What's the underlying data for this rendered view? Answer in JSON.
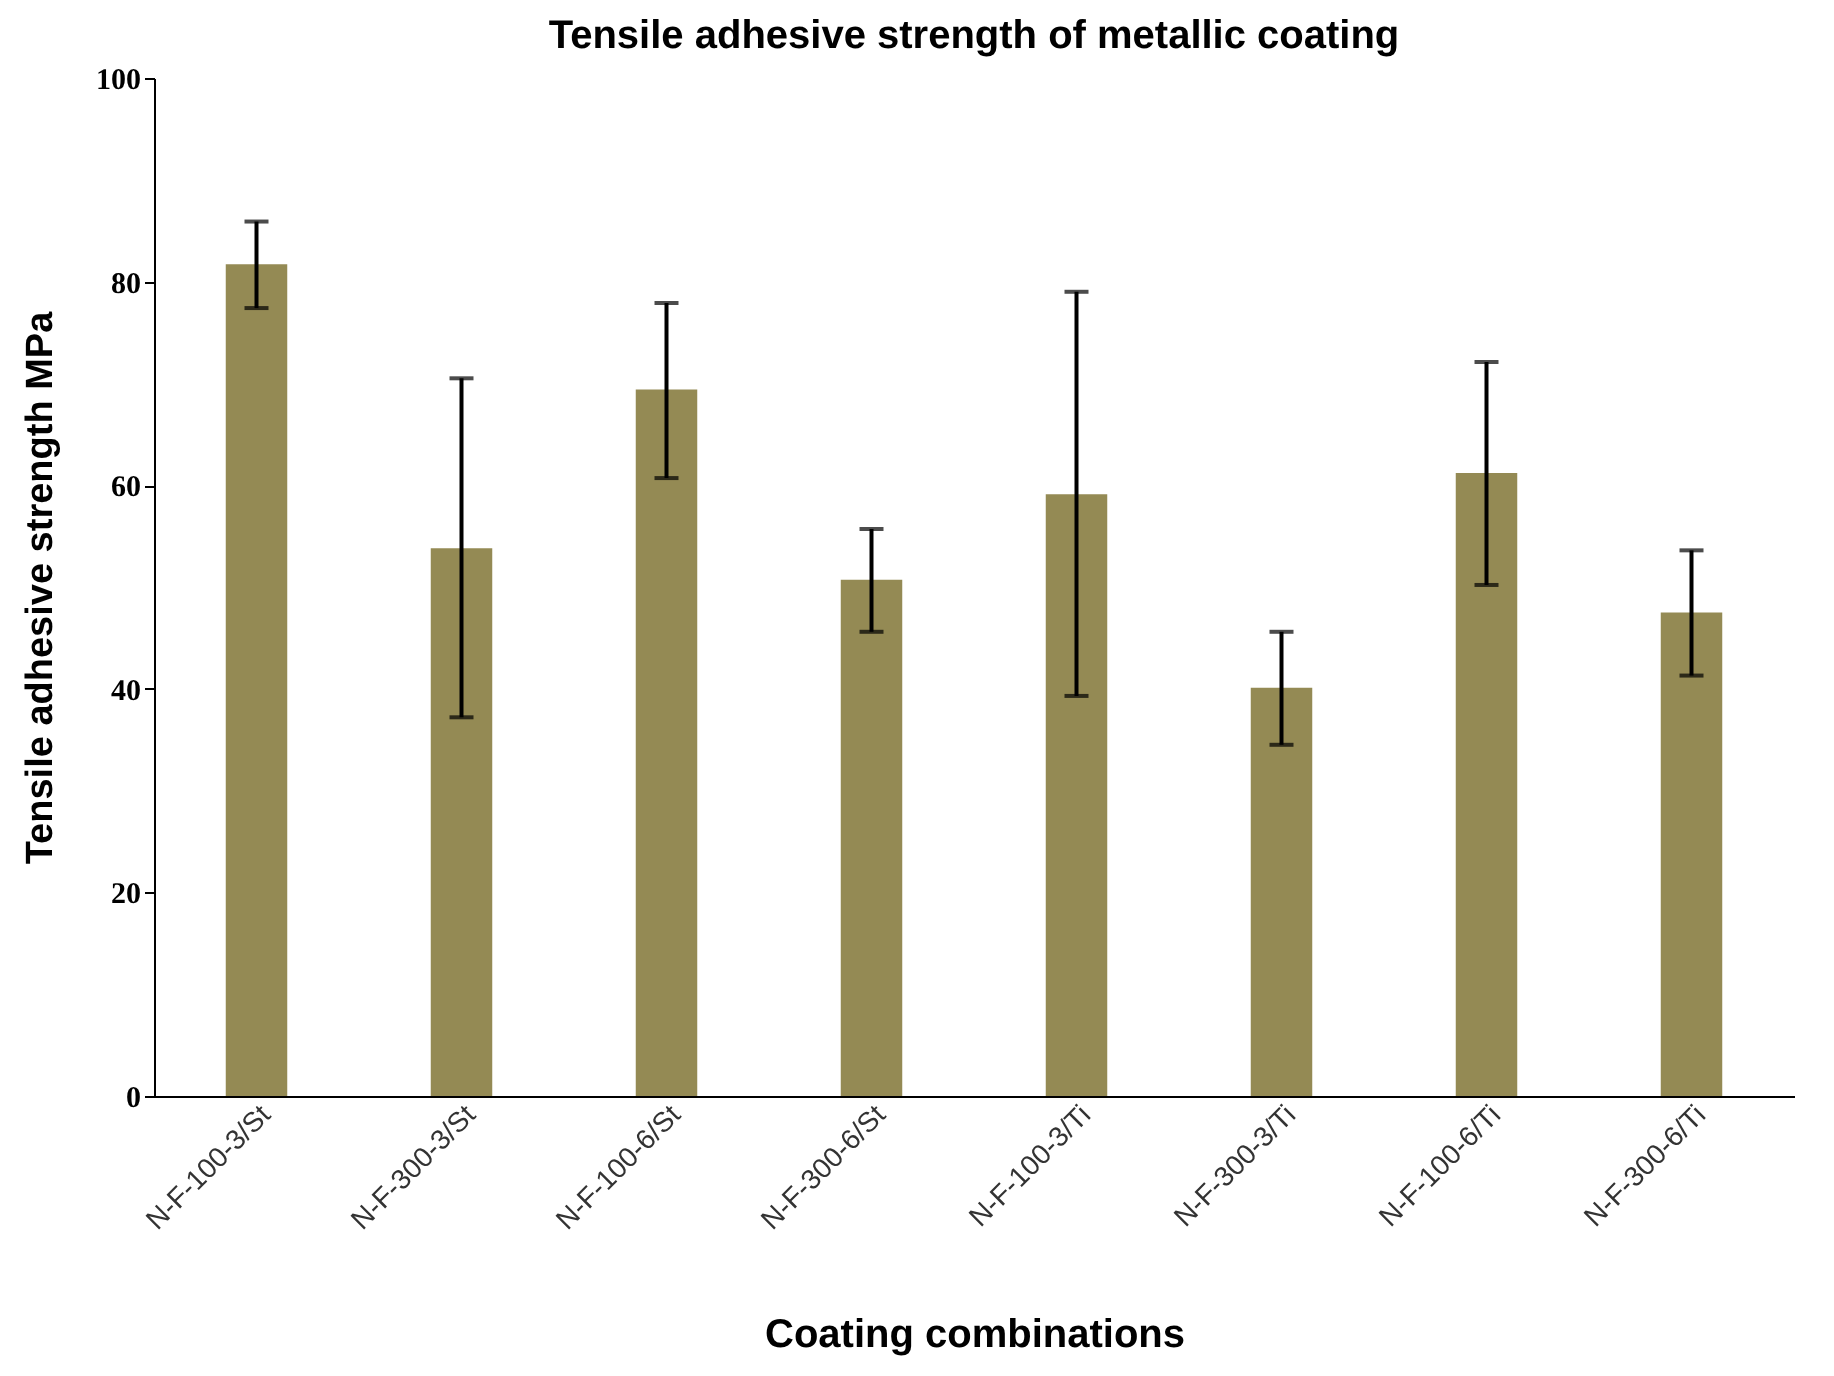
{
  "chart_data": {
    "type": "bar",
    "title": "Tensile adhesive strength of metallic coating",
    "xlabel": "Coating combinations",
    "ylabel": "Tensile adhesive strength MPa",
    "categories": [
      "N-F-100-3/St",
      "N-F-300-3/St",
      "N-F-100-6/St",
      "N-F-300-6/St",
      "N-F-100-3/Ti",
      "N-F-300-3/Ti",
      "N-F-100-6/Ti",
      "N-F-300-6/Ti"
    ],
    "values": [
      81.7,
      53.8,
      69.4,
      50.7,
      59.1,
      40.1,
      61.2,
      47.5
    ],
    "errors": [
      [
        77.4,
        85.9
      ],
      [
        37.2,
        70.5
      ],
      [
        60.7,
        77.9
      ],
      [
        45.6,
        55.7
      ],
      [
        39.3,
        79.0
      ],
      [
        34.5,
        45.6
      ],
      [
        50.2,
        72.1
      ],
      [
        41.3,
        53.6
      ]
    ],
    "color": "#948a54",
    "ylim": [
      0,
      100
    ],
    "yticks": [
      0,
      20,
      40,
      60,
      80,
      100
    ],
    "grid": false
  }
}
